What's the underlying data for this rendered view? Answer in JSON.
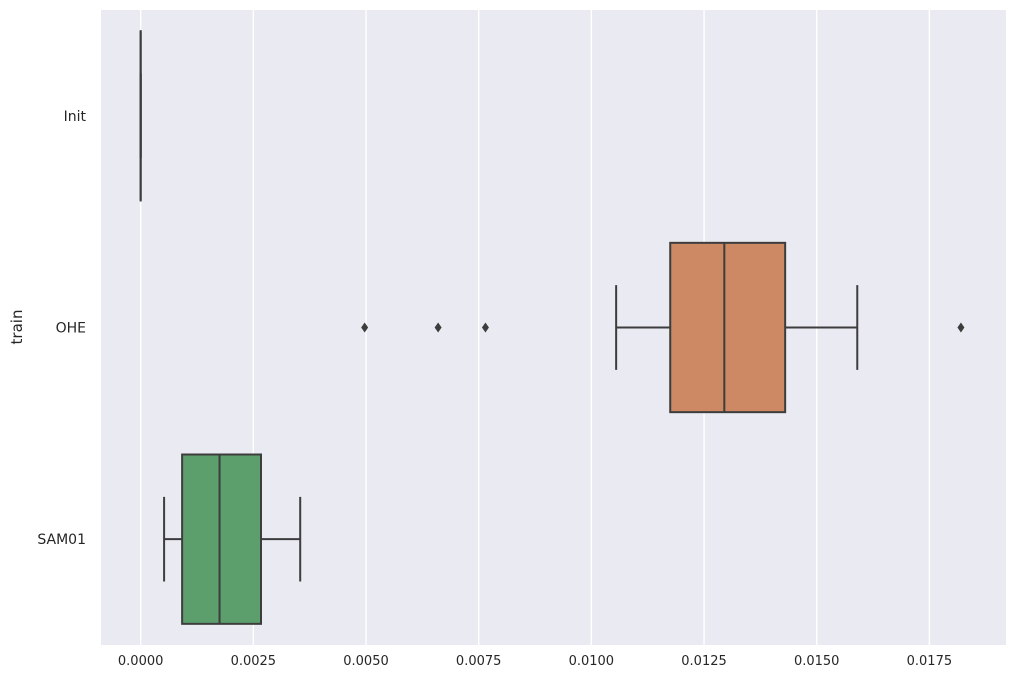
{
  "chart_data": {
    "type": "box",
    "orientation": "horizontal",
    "ylabel": "train",
    "xlabel": "",
    "xlim": [
      -0.00088,
      0.0192
    ],
    "grid": true,
    "x_ticks": [
      "0.0000",
      "0.0025",
      "0.0050",
      "0.0075",
      "0.0100",
      "0.0125",
      "0.0150",
      "0.0175"
    ],
    "x_tick_values": [
      0,
      0.0025,
      0.005,
      0.0075,
      0.01,
      0.0125,
      0.015,
      0.0175
    ],
    "categories": [
      "Init",
      "OHE",
      "SAM01"
    ],
    "boxes": [
      {
        "category": "Init",
        "whislo": 0,
        "q1": 0,
        "med": 0,
        "q3": 0,
        "whishi": 0,
        "fliers": [],
        "color": "#4c72b0"
      },
      {
        "category": "OHE",
        "whislo": 0.01055,
        "q1": 0.01175,
        "med": 0.01295,
        "q3": 0.0143,
        "whishi": 0.0159,
        "fliers": [
          0.00497,
          0.0066,
          0.00765,
          0.0182
        ],
        "color": "#cc8963"
      },
      {
        "category": "SAM01",
        "whislo": 0.00052,
        "q1": 0.00092,
        "med": 0.00175,
        "q3": 0.00267,
        "whishi": 0.00354,
        "fliers": [],
        "color": "#5d9e6d"
      }
    ],
    "colors": {
      "background": "#eaeaf2",
      "grid": "#ffffff",
      "line": "#3d3d3d"
    }
  }
}
